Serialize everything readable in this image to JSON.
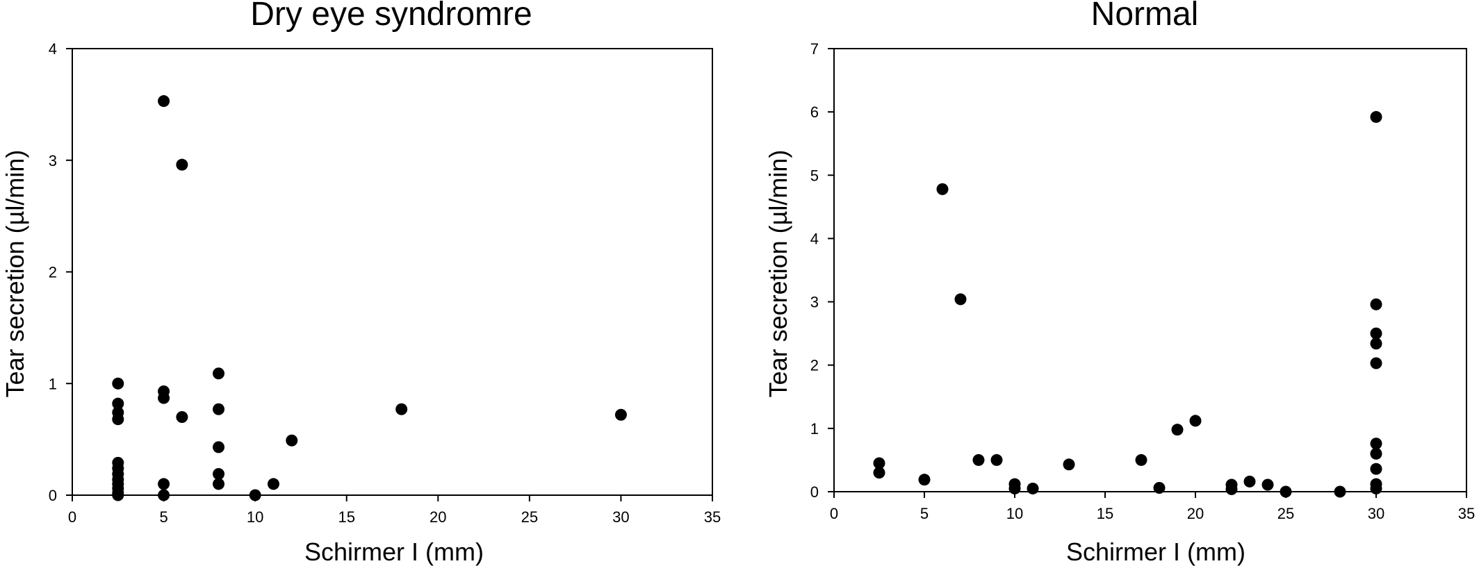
{
  "chart_data": [
    {
      "type": "scatter",
      "title": "Dry eye syndromre",
      "xlabel": "Schirmer I (mm)",
      "ylabel": "Tear secretion (µl/min)",
      "xlim": [
        0,
        35
      ],
      "ylim": [
        0,
        4
      ],
      "xticks": [
        0,
        5,
        10,
        15,
        20,
        25,
        30,
        35
      ],
      "yticks": [
        0,
        1,
        2,
        3,
        4
      ],
      "grid": false,
      "marker_color": "#000000",
      "points": [
        {
          "x": 2.5,
          "y": 1.0
        },
        {
          "x": 2.5,
          "y": 0.82
        },
        {
          "x": 2.5,
          "y": 0.74
        },
        {
          "x": 2.5,
          "y": 0.68
        },
        {
          "x": 2.5,
          "y": 0.29
        },
        {
          "x": 2.5,
          "y": 0.24
        },
        {
          "x": 2.5,
          "y": 0.19
        },
        {
          "x": 2.5,
          "y": 0.14
        },
        {
          "x": 2.5,
          "y": 0.1
        },
        {
          "x": 2.5,
          "y": 0.06
        },
        {
          "x": 2.5,
          "y": 0.02
        },
        {
          "x": 2.5,
          "y": 0.0
        },
        {
          "x": 5,
          "y": 3.53
        },
        {
          "x": 5,
          "y": 0.93
        },
        {
          "x": 5,
          "y": 0.87
        },
        {
          "x": 5,
          "y": 0.1
        },
        {
          "x": 5,
          "y": 0.0
        },
        {
          "x": 6,
          "y": 2.96
        },
        {
          "x": 6,
          "y": 0.7
        },
        {
          "x": 8,
          "y": 1.09
        },
        {
          "x": 8,
          "y": 0.77
        },
        {
          "x": 8,
          "y": 0.43
        },
        {
          "x": 8,
          "y": 0.19
        },
        {
          "x": 8,
          "y": 0.1
        },
        {
          "x": 10,
          "y": 0.0
        },
        {
          "x": 11,
          "y": 0.1
        },
        {
          "x": 12,
          "y": 0.49
        },
        {
          "x": 18,
          "y": 0.77
        },
        {
          "x": 30,
          "y": 0.72
        }
      ]
    },
    {
      "type": "scatter",
      "title": "Normal",
      "xlabel": "Schirmer I (mm)",
      "ylabel": "Tear secretion (µl/min)",
      "xlim": [
        0,
        35
      ],
      "ylim": [
        0,
        7
      ],
      "xticks": [
        0,
        5,
        10,
        15,
        20,
        25,
        30,
        35
      ],
      "yticks": [
        0,
        1,
        2,
        3,
        4,
        5,
        6,
        7
      ],
      "grid": false,
      "marker_color": "#000000",
      "points": [
        {
          "x": 2.5,
          "y": 0.45
        },
        {
          "x": 2.5,
          "y": 0.3
        },
        {
          "x": 5,
          "y": 0.19
        },
        {
          "x": 6,
          "y": 4.78
        },
        {
          "x": 7,
          "y": 3.04
        },
        {
          "x": 8,
          "y": 0.5
        },
        {
          "x": 9,
          "y": 0.5
        },
        {
          "x": 10,
          "y": 0.12
        },
        {
          "x": 10,
          "y": 0.05
        },
        {
          "x": 11,
          "y": 0.05
        },
        {
          "x": 13,
          "y": 0.43
        },
        {
          "x": 17,
          "y": 0.5
        },
        {
          "x": 18,
          "y": 0.06
        },
        {
          "x": 19,
          "y": 0.98
        },
        {
          "x": 20,
          "y": 1.12
        },
        {
          "x": 22,
          "y": 0.11
        },
        {
          "x": 22,
          "y": 0.04
        },
        {
          "x": 23,
          "y": 0.16
        },
        {
          "x": 24,
          "y": 0.11
        },
        {
          "x": 25,
          "y": 0.0
        },
        {
          "x": 28,
          "y": 0.0
        },
        {
          "x": 30,
          "y": 5.92
        },
        {
          "x": 30,
          "y": 2.96
        },
        {
          "x": 30,
          "y": 2.5
        },
        {
          "x": 30,
          "y": 2.34
        },
        {
          "x": 30,
          "y": 2.03
        },
        {
          "x": 30,
          "y": 0.76
        },
        {
          "x": 30,
          "y": 0.6
        },
        {
          "x": 30,
          "y": 0.36
        },
        {
          "x": 30,
          "y": 0.12
        },
        {
          "x": 30,
          "y": 0.05
        }
      ]
    }
  ]
}
